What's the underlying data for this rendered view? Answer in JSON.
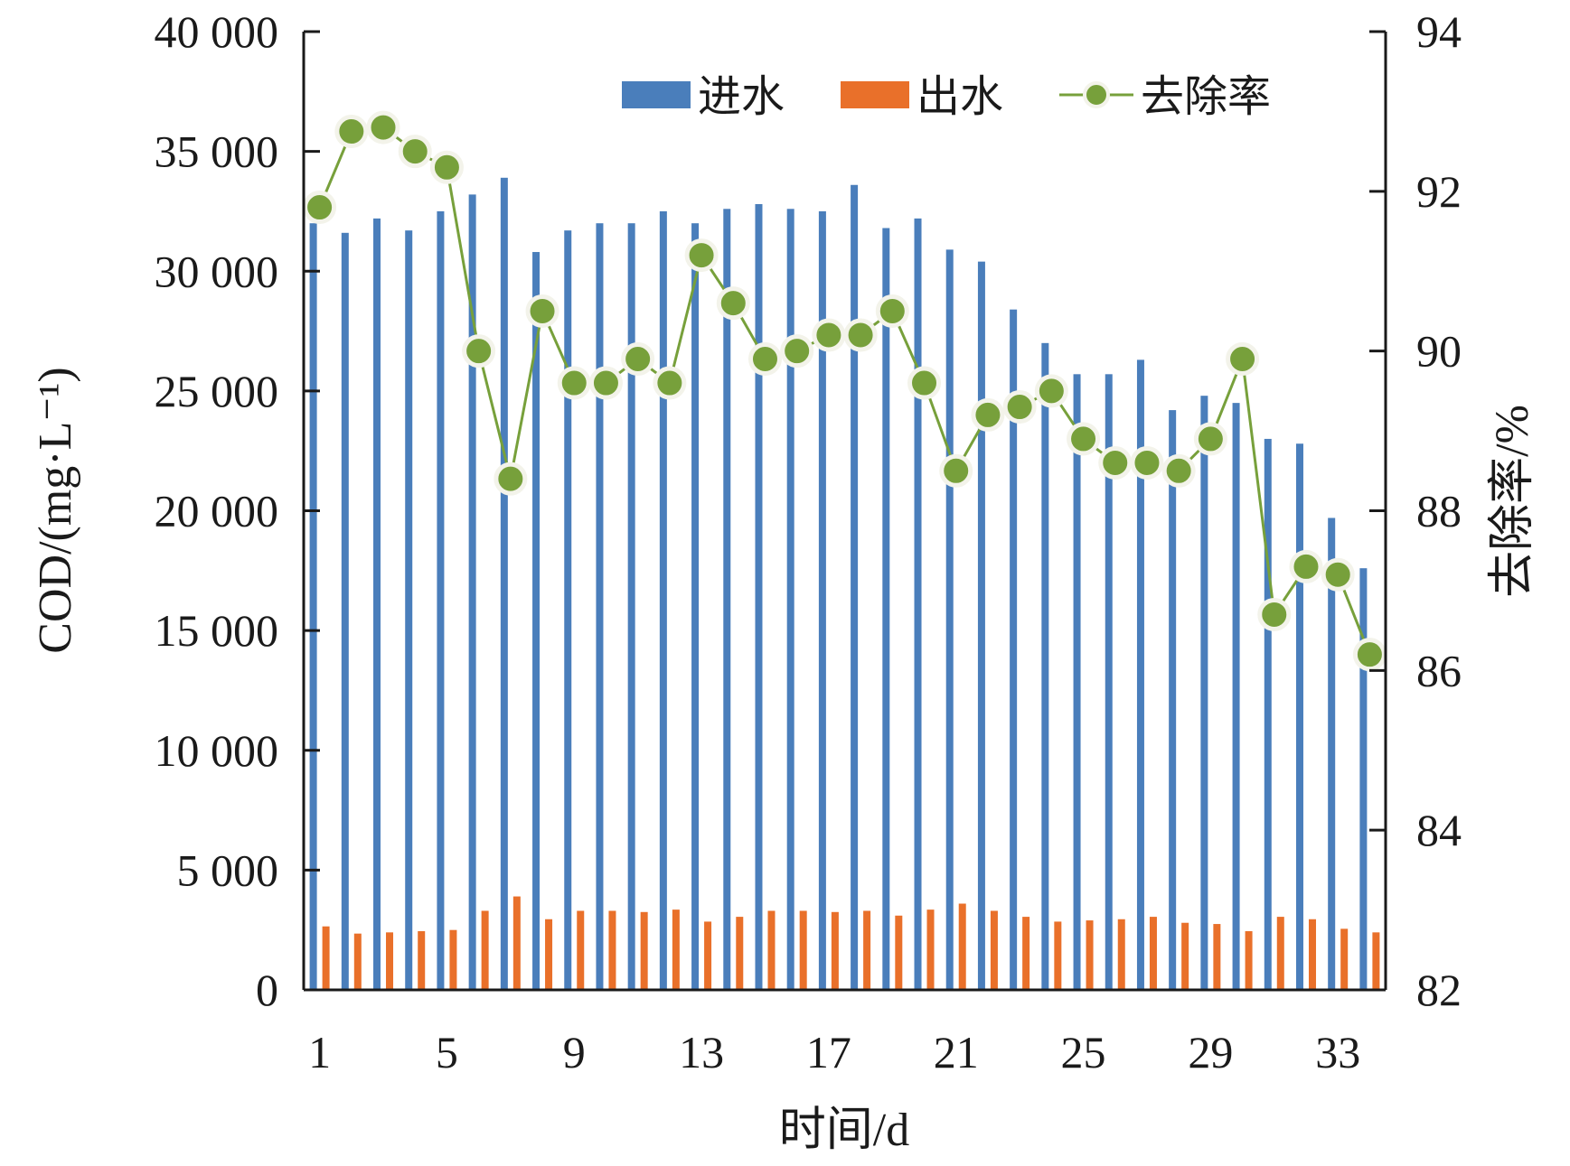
{
  "chart_data": {
    "type": "bar",
    "x": [
      1,
      2,
      3,
      4,
      5,
      6,
      7,
      8,
      9,
      10,
      11,
      12,
      13,
      14,
      15,
      16,
      17,
      18,
      19,
      20,
      21,
      22,
      23,
      24,
      25,
      26,
      27,
      28,
      29,
      30,
      31,
      32,
      33,
      34
    ],
    "x_ticks": [
      "1",
      "5",
      "9",
      "13",
      "17",
      "21",
      "25",
      "29",
      "33"
    ],
    "xlabel": "时间/d",
    "ylabel": "COD/(mg·L⁻¹)",
    "y2label": "去除率/%",
    "ylim": [
      0,
      40000
    ],
    "y_ticks": [
      "0",
      "5 000",
      "10 000",
      "15 000",
      "20 000",
      "25 000",
      "30 000",
      "35 000",
      "40 000"
    ],
    "y2lim": [
      82,
      94
    ],
    "y2_ticks": [
      "82",
      "84",
      "86",
      "88",
      "90",
      "92",
      "94"
    ],
    "legend_position": "top-right",
    "grid": false,
    "series": [
      {
        "name": "进水",
        "kind": "bar",
        "axis": "left",
        "color": "#4a7ebb",
        "values": [
          32000,
          31600,
          32200,
          31700,
          32500,
          33200,
          33900,
          30800,
          31700,
          32000,
          32000,
          32500,
          32000,
          32600,
          32800,
          32600,
          32500,
          33600,
          31800,
          32200,
          30900,
          30400,
          28400,
          27000,
          25700,
          25700,
          26300,
          24200,
          24800,
          24500,
          23000,
          22800,
          19700,
          17600
        ]
      },
      {
        "name": "出水",
        "kind": "bar",
        "axis": "left",
        "color": "#e9702a",
        "values": [
          2650,
          2350,
          2400,
          2450,
          2500,
          3300,
          3900,
          2950,
          3300,
          3300,
          3250,
          3350,
          2850,
          3050,
          3300,
          3300,
          3250,
          3300,
          3100,
          3350,
          3600,
          3300,
          3050,
          2850,
          2900,
          2950,
          3050,
          2800,
          2750,
          2450,
          3050,
          2950,
          2550,
          2400
        ]
      },
      {
        "name": "去除率",
        "kind": "line",
        "axis": "right",
        "color": "#77a03b",
        "marker_color": "#77a03b",
        "values": [
          91.8,
          92.75,
          92.8,
          92.5,
          92.3,
          90.0,
          88.4,
          90.5,
          89.6,
          89.6,
          89.9,
          89.6,
          91.2,
          90.6,
          89.9,
          90.0,
          90.2,
          90.2,
          90.5,
          89.6,
          88.5,
          89.2,
          89.3,
          89.5,
          88.9,
          88.6,
          88.6,
          88.5,
          88.9,
          89.9,
          86.7,
          87.3,
          87.2,
          86.2
        ]
      }
    ]
  }
}
